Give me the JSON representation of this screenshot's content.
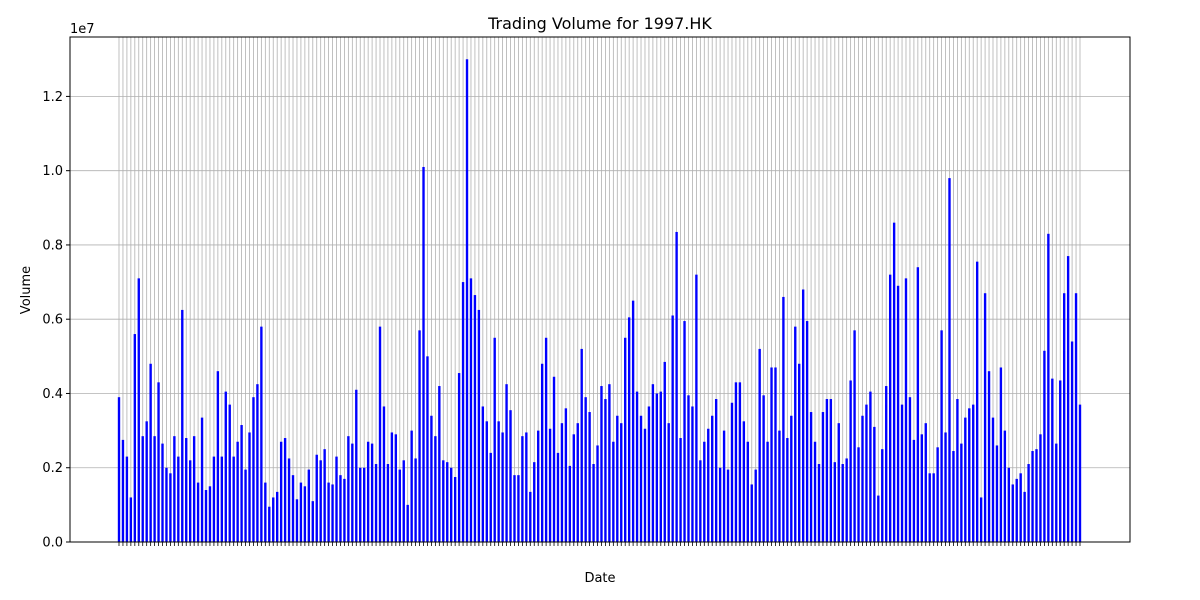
{
  "chart_data": {
    "type": "bar",
    "title": "Trading Volume for 1997.HK",
    "xlabel": "Date",
    "ylabel": "Volume",
    "y_offset_label": "1e7",
    "ylim": [
      0,
      13600000
    ],
    "yticks": [
      0,
      2000000,
      4000000,
      6000000,
      8000000,
      10000000,
      12000000
    ],
    "ytick_labels": [
      "0.0",
      "0.2",
      "0.4",
      "0.6",
      "0.8",
      "1.0",
      "1.2"
    ],
    "grid": true,
    "bar_color": "#0000ff",
    "values": [
      3900000,
      2750000,
      2300000,
      1200000,
      5600000,
      7100000,
      2850000,
      3250000,
      4800000,
      2850000,
      4300000,
      2650000,
      2000000,
      1850000,
      2850000,
      2300000,
      6250000,
      2800000,
      2200000,
      2850000,
      1600000,
      3350000,
      1400000,
      1500000,
      2300000,
      4600000,
      2300000,
      4050000,
      3700000,
      2300000,
      2700000,
      3150000,
      1950000,
      2950000,
      3900000,
      4250000,
      5800000,
      1600000,
      950000,
      1200000,
      1350000,
      2700000,
      2800000,
      2250000,
      1800000,
      1150000,
      1600000,
      1500000,
      1950000,
      1100000,
      2350000,
      2200000,
      2500000,
      1600000,
      1550000,
      2300000,
      1800000,
      1700000,
      2850000,
      2650000,
      4100000,
      2000000,
      2000000,
      2700000,
      2650000,
      2100000,
      5800000,
      3650000,
      2100000,
      2950000,
      2900000,
      1950000,
      2200000,
      1000000,
      3000000,
      2250000,
      5700000,
      10100000,
      5000000,
      3400000,
      2850000,
      4200000,
      2200000,
      2150000,
      2000000,
      1750000,
      4550000,
      7000000,
      13000000,
      7100000,
      6650000,
      6250000,
      3650000,
      3250000,
      2400000,
      5500000,
      3250000,
      2950000,
      4250000,
      3550000,
      1800000,
      1800000,
      2850000,
      2950000,
      1350000,
      2150000,
      3000000,
      4800000,
      5500000,
      3050000,
      4450000,
      2400000,
      3200000,
      3600000,
      2050000,
      2900000,
      3200000,
      5200000,
      3900000,
      3500000,
      2100000,
      2600000,
      4200000,
      3850000,
      4250000,
      2700000,
      3400000,
      3200000,
      5500000,
      6050000,
      6500000,
      4050000,
      3400000,
      3050000,
      3650000,
      4250000,
      4000000,
      4050000,
      4850000,
      3200000,
      6100000,
      8350000,
      2800000,
      5950000,
      3950000,
      3650000,
      7200000,
      2200000,
      2700000,
      3050000,
      3400000,
      3850000,
      2000000,
      3000000,
      1950000,
      3750000,
      4300000,
      4300000,
      3250000,
      2700000,
      1550000,
      1950000,
      5200000,
      3950000,
      2700000,
      4700000,
      4700000,
      3000000,
      6600000,
      2800000,
      3400000,
      5800000,
      4800000,
      6800000,
      5950000,
      3500000,
      2700000,
      2100000,
      3500000,
      3850000,
      3850000,
      2150000,
      3200000,
      2100000,
      2250000,
      4350000,
      5700000,
      2550000,
      3400000,
      3700000,
      4050000,
      3100000,
      1250000,
      2500000,
      4200000,
      7200000,
      8600000,
      6900000,
      3700000,
      7100000,
      3900000,
      2750000,
      7400000,
      2900000,
      3200000,
      1850000,
      1850000,
      2550000,
      5700000,
      2950000,
      9800000,
      2450000,
      3850000,
      2650000,
      3350000,
      3600000,
      3700000,
      7550000,
      1200000,
      6700000,
      4600000,
      3350000,
      2600000,
      4700000,
      3000000,
      2000000,
      1550000,
      1700000,
      1850000,
      1350000,
      2100000,
      2450000,
      2500000,
      2900000,
      5150000,
      8300000,
      4400000,
      2650000,
      4350000,
      6700000,
      7700000,
      5400000,
      6700000,
      3700000
    ]
  }
}
